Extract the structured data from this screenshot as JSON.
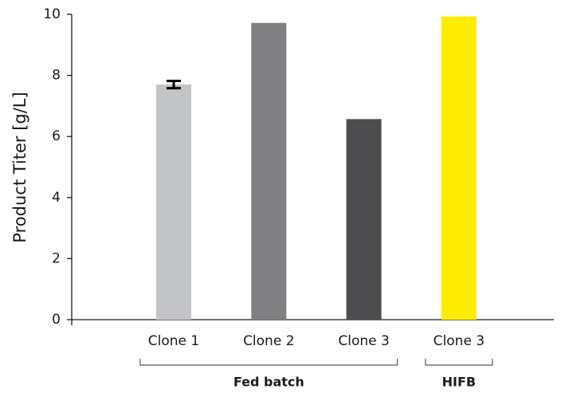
{
  "chart_data": {
    "type": "bar",
    "y_label": "Product Titer [g/L]",
    "categories": [
      "Clone 1",
      "Clone 2",
      "Clone 3",
      "Clone 3"
    ],
    "values": [
      7.7,
      9.72,
      6.57,
      9.93
    ],
    "errors": [
      0.12,
      null,
      null,
      null
    ],
    "colors": [
      "#c3c4c6",
      "#808083",
      "#4d4d50",
      "#ffec00"
    ],
    "groups": [
      {
        "label": "Fed batch",
        "span": 3
      },
      {
        "label": "HIFB",
        "span": 1
      }
    ],
    "ylim": [
      0,
      10
    ],
    "yticks": [
      0,
      2,
      4,
      6,
      8,
      10
    ],
    "grid": false
  }
}
